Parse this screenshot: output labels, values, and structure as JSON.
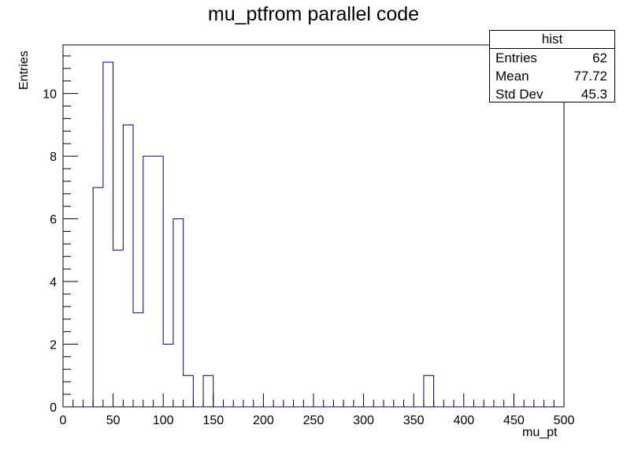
{
  "chart_data": {
    "type": "histogram",
    "title": "mu_ptfrom parallel code",
    "xlabel": "mu_pt",
    "ylabel": "Entries",
    "xlim": [
      0,
      500
    ],
    "ylim": [
      0,
      11.55
    ],
    "bin_width": 10,
    "x_ticks": [
      0,
      50,
      100,
      150,
      200,
      250,
      300,
      350,
      400,
      450,
      500
    ],
    "y_ticks": [
      0,
      2,
      4,
      6,
      8,
      10
    ],
    "bins": [
      {
        "x": 30,
        "count": 7
      },
      {
        "x": 40,
        "count": 11
      },
      {
        "x": 50,
        "count": 5
      },
      {
        "x": 60,
        "count": 9
      },
      {
        "x": 70,
        "count": 3
      },
      {
        "x": 80,
        "count": 8
      },
      {
        "x": 90,
        "count": 8
      },
      {
        "x": 100,
        "count": 2
      },
      {
        "x": 110,
        "count": 6
      },
      {
        "x": 120,
        "count": 1
      },
      {
        "x": 140,
        "count": 1
      },
      {
        "x": 360,
        "count": 1
      }
    ],
    "line_color": "#000080",
    "stats": {
      "name": "hist",
      "rows": [
        {
          "label": "Entries",
          "value": "62"
        },
        {
          "label": "Mean",
          "value": "77.72"
        },
        {
          "label": "Std Dev",
          "value": "45.3"
        }
      ]
    }
  }
}
